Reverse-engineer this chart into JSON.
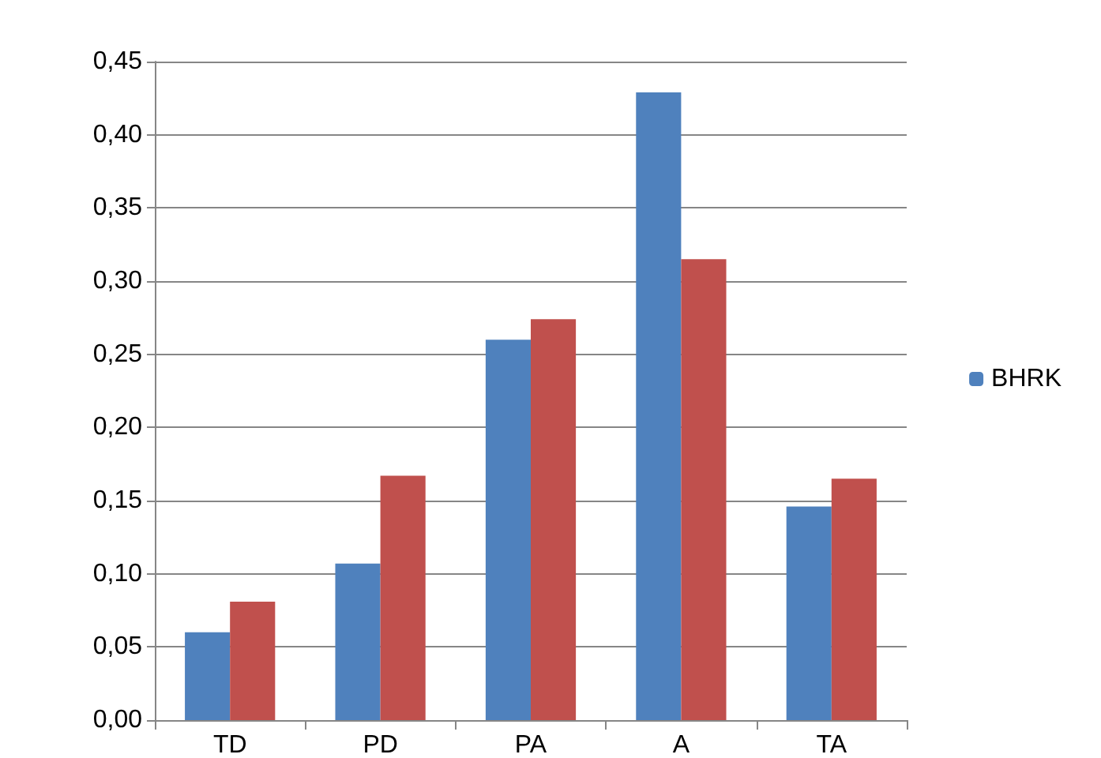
{
  "chart_data": {
    "type": "bar",
    "categories": [
      "TD",
      "PD",
      "PA",
      "A",
      "TA"
    ],
    "series": [
      {
        "name": "BHRK",
        "color": "#4f81bd",
        "values": [
          0.06,
          0.107,
          0.26,
          0.429,
          0.146
        ]
      },
      {
        "color": "#c0504d",
        "values": [
          0.081,
          0.167,
          0.274,
          0.315,
          0.165
        ]
      }
    ],
    "ylim": [
      0,
      0.45
    ],
    "yticks": [
      {
        "value": 0,
        "label": "0,00"
      },
      {
        "value": 0.05,
        "label": "0,05"
      },
      {
        "value": 0.1,
        "label": "0,10"
      },
      {
        "value": 0.15,
        "label": "0,15"
      },
      {
        "value": 0.2,
        "label": "0,20"
      },
      {
        "value": 0.25,
        "label": "0,25"
      },
      {
        "value": 0.3,
        "label": "0,30"
      },
      {
        "value": 0.35,
        "label": "0,35"
      },
      {
        "value": 0.4,
        "label": "0,40"
      },
      {
        "value": 0.45,
        "label": "0,45"
      }
    ],
    "grid": "y",
    "legend": "right"
  }
}
